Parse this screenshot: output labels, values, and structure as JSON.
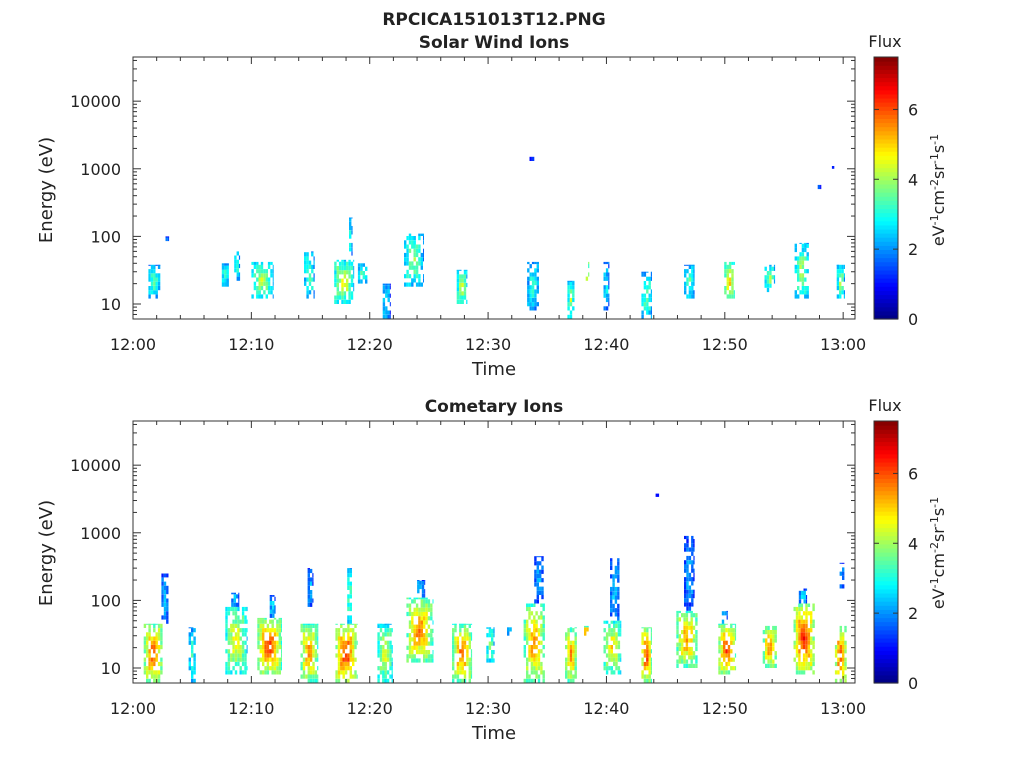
{
  "figure": {
    "title": "RPCICA151013T12.PNG"
  },
  "chart_data": [
    {
      "type": "heatmap",
      "title": "Solar Wind Ions",
      "xlabel": "Time",
      "ylabel": "Energy (eV)",
      "x_ticks": [
        "12:00",
        "12:10",
        "12:20",
        "12:30",
        "12:40",
        "12:50",
        "13:00"
      ],
      "y_ticks": [
        "10",
        "100",
        "1000",
        "10000"
      ],
      "y_scale": "log",
      "xlim_minutes": [
        0,
        61
      ],
      "ylim_eV": [
        6,
        45000
      ],
      "colorbar": {
        "title": "Flux",
        "label": "eV-1cm-2sr-1s-1",
        "ticks": [
          "0",
          "2",
          "4",
          "6"
        ],
        "range": [
          0,
          7.5
        ],
        "colormap": "jet"
      },
      "bursts": [
        {
          "t": 1.8,
          "dur": 1.0,
          "e_lo": 12,
          "e_hi": 38,
          "flux": 3.6
        },
        {
          "t": 2.9,
          "dur": 0.3,
          "e_lo": 85,
          "e_hi": 100,
          "flux": 2.2
        },
        {
          "t": 7.8,
          "dur": 0.6,
          "e_lo": 18,
          "e_hi": 40,
          "flux": 3.7
        },
        {
          "t": 8.8,
          "dur": 0.5,
          "e_lo": 22,
          "e_hi": 60,
          "flux": 3.5
        },
        {
          "t": 10.9,
          "dur": 1.8,
          "e_lo": 12,
          "e_hi": 42,
          "flux": 4.4
        },
        {
          "t": 14.9,
          "dur": 0.9,
          "e_lo": 12,
          "e_hi": 60,
          "flux": 3.8
        },
        {
          "t": 17.8,
          "dur": 1.6,
          "e_lo": 10,
          "e_hi": 45,
          "flux": 4.8
        },
        {
          "t": 18.4,
          "dur": 0.3,
          "e_lo": 45,
          "e_hi": 190,
          "flux": 3.3
        },
        {
          "t": 19.4,
          "dur": 0.8,
          "e_lo": 20,
          "e_hi": 40,
          "flux": 3.6
        },
        {
          "t": 21.4,
          "dur": 0.6,
          "e_lo": 6,
          "e_hi": 20,
          "flux": 3.2
        },
        {
          "t": 23.7,
          "dur": 1.6,
          "e_lo": 18,
          "e_hi": 110,
          "flux": 4.1
        },
        {
          "t": 27.8,
          "dur": 0.9,
          "e_lo": 10,
          "e_hi": 32,
          "flux": 4.6
        },
        {
          "t": 33.8,
          "dur": 1.0,
          "e_lo": 8,
          "e_hi": 42,
          "flux": 3.4
        },
        {
          "t": 33.7,
          "dur": 0.4,
          "e_lo": 1300,
          "e_hi": 1600,
          "flux": 1.5
        },
        {
          "t": 37.0,
          "dur": 0.6,
          "e_lo": 6,
          "e_hi": 22,
          "flux": 4.2
        },
        {
          "t": 38.4,
          "dur": 0.3,
          "e_lo": 22,
          "e_hi": 42,
          "flux": 6.5
        },
        {
          "t": 40.0,
          "dur": 0.5,
          "e_lo": 8,
          "e_hi": 42,
          "flux": 3.0
        },
        {
          "t": 43.4,
          "dur": 0.9,
          "e_lo": 6,
          "e_hi": 30,
          "flux": 3.8
        },
        {
          "t": 47.0,
          "dur": 0.9,
          "e_lo": 12,
          "e_hi": 38,
          "flux": 3.8
        },
        {
          "t": 50.4,
          "dur": 0.9,
          "e_lo": 12,
          "e_hi": 42,
          "flux": 5.3
        },
        {
          "t": 53.8,
          "dur": 0.9,
          "e_lo": 15,
          "e_hi": 38,
          "flux": 4.1
        },
        {
          "t": 56.5,
          "dur": 1.2,
          "e_lo": 12,
          "e_hi": 80,
          "flux": 4.2
        },
        {
          "t": 59.8,
          "dur": 0.7,
          "e_lo": 12,
          "e_hi": 38,
          "flux": 4.1
        },
        {
          "t": 58.0,
          "dur": 0.3,
          "e_lo": 500,
          "e_hi": 580,
          "flux": 1.5
        },
        {
          "t": 59.2,
          "dur": 0.3,
          "e_lo": 1000,
          "e_hi": 1100,
          "flux": 1.5
        }
      ]
    },
    {
      "type": "heatmap",
      "title": "Cometary Ions",
      "xlabel": "Time",
      "ylabel": "Energy (eV)",
      "x_ticks": [
        "12:00",
        "12:10",
        "12:20",
        "12:30",
        "12:40",
        "12:50",
        "13:00"
      ],
      "y_ticks": [
        "10",
        "100",
        "1000",
        "10000"
      ],
      "y_scale": "log",
      "xlim_minutes": [
        0,
        61
      ],
      "ylim_eV": [
        6,
        45000
      ],
      "colorbar": {
        "title": "Flux",
        "label": "eV-1cm-2sr-1s-1",
        "ticks": [
          "0",
          "2",
          "4",
          "6"
        ],
        "range": [
          0,
          7.5
        ],
        "colormap": "jet"
      },
      "bursts": [
        {
          "t": 1.7,
          "dur": 1.6,
          "e_lo": 6,
          "e_hi": 45,
          "flux": 6.2
        },
        {
          "t": 2.7,
          "dur": 0.6,
          "e_lo": 45,
          "e_hi": 250,
          "flux": 2.6
        },
        {
          "t": 5.0,
          "dur": 0.6,
          "e_lo": 6,
          "e_hi": 40,
          "flux": 3.6
        },
        {
          "t": 8.7,
          "dur": 1.8,
          "e_lo": 8,
          "e_hi": 80,
          "flux": 5.0
        },
        {
          "t": 8.6,
          "dur": 0.6,
          "e_lo": 80,
          "e_hi": 130,
          "flux": 2.8
        },
        {
          "t": 11.5,
          "dur": 2.0,
          "e_lo": 8,
          "e_hi": 55,
          "flux": 6.4
        },
        {
          "t": 11.8,
          "dur": 0.5,
          "e_lo": 55,
          "e_hi": 120,
          "flux": 3.0
        },
        {
          "t": 14.9,
          "dur": 1.5,
          "e_lo": 6,
          "e_hi": 45,
          "flux": 5.8
        },
        {
          "t": 15.0,
          "dur": 0.5,
          "e_lo": 80,
          "e_hi": 300,
          "flux": 2.5
        },
        {
          "t": 18.0,
          "dur": 1.8,
          "e_lo": 6,
          "e_hi": 45,
          "flux": 6.6
        },
        {
          "t": 18.3,
          "dur": 0.4,
          "e_lo": 45,
          "e_hi": 300,
          "flux": 4.0
        },
        {
          "t": 21.3,
          "dur": 1.3,
          "e_lo": 6,
          "e_hi": 45,
          "flux": 4.8
        },
        {
          "t": 24.2,
          "dur": 2.2,
          "e_lo": 12,
          "e_hi": 110,
          "flux": 6.0
        },
        {
          "t": 24.3,
          "dur": 0.6,
          "e_lo": 110,
          "e_hi": 200,
          "flux": 3.0
        },
        {
          "t": 27.8,
          "dur": 1.7,
          "e_lo": 6,
          "e_hi": 45,
          "flux": 6.0
        },
        {
          "t": 30.2,
          "dur": 0.7,
          "e_lo": 12,
          "e_hi": 40,
          "flux": 4.2
        },
        {
          "t": 31.8,
          "dur": 0.4,
          "e_lo": 30,
          "e_hi": 40,
          "flux": 3.0
        },
        {
          "t": 33.9,
          "dur": 1.8,
          "e_lo": 6,
          "e_hi": 90,
          "flux": 5.8
        },
        {
          "t": 34.3,
          "dur": 0.8,
          "e_lo": 90,
          "e_hi": 450,
          "flux": 2.5
        },
        {
          "t": 37.0,
          "dur": 1.0,
          "e_lo": 6,
          "e_hi": 40,
          "flux": 5.8
        },
        {
          "t": 38.3,
          "dur": 0.4,
          "e_lo": 30,
          "e_hi": 42,
          "flux": 7.0
        },
        {
          "t": 40.5,
          "dur": 1.5,
          "e_lo": 8,
          "e_hi": 50,
          "flux": 5.2
        },
        {
          "t": 40.7,
          "dur": 0.8,
          "e_lo": 50,
          "e_hi": 420,
          "flux": 2.6
        },
        {
          "t": 43.4,
          "dur": 0.9,
          "e_lo": 6,
          "e_hi": 40,
          "flux": 6.5
        },
        {
          "t": 44.3,
          "dur": 0.3,
          "e_lo": 3400,
          "e_hi": 3800,
          "flux": 1.2
        },
        {
          "t": 46.8,
          "dur": 1.8,
          "e_lo": 10,
          "e_hi": 70,
          "flux": 5.8
        },
        {
          "t": 47.0,
          "dur": 0.9,
          "e_lo": 70,
          "e_hi": 900,
          "flux": 2.4
        },
        {
          "t": 50.2,
          "dur": 1.5,
          "e_lo": 8,
          "e_hi": 45,
          "flux": 6.4
        },
        {
          "t": 50.0,
          "dur": 0.5,
          "e_lo": 45,
          "e_hi": 70,
          "flux": 3.0
        },
        {
          "t": 53.8,
          "dur": 1.2,
          "e_lo": 10,
          "e_hi": 42,
          "flux": 6.0
        },
        {
          "t": 56.7,
          "dur": 1.8,
          "e_lo": 8,
          "e_hi": 90,
          "flux": 6.5
        },
        {
          "t": 56.6,
          "dur": 0.7,
          "e_lo": 90,
          "e_hi": 150,
          "flux": 2.8
        },
        {
          "t": 59.8,
          "dur": 1.0,
          "e_lo": 6,
          "e_hi": 42,
          "flux": 6.4
        },
        {
          "t": 59.9,
          "dur": 0.4,
          "e_lo": 150,
          "e_hi": 360,
          "flux": 2.4
        }
      ]
    }
  ]
}
